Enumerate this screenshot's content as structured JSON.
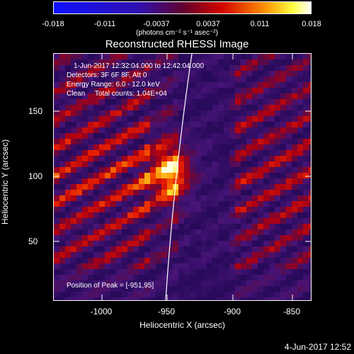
{
  "colorbar": {
    "ticks": [
      "-0.018",
      "-0.011",
      "-0.0037",
      "0.0037",
      "0.011",
      "0.018"
    ],
    "units": "(photons cm⁻² s⁻¹ asec⁻²)"
  },
  "title": "Reconstructed RHESSI Image",
  "info": {
    "time_range": "1-Jun-2017 12:32:04.000 to 12:42:04.000",
    "detectors": "Detectors: 3F 6F 8F, Att 0",
    "energy": "Energy Range: 6.0 - 12.0 keV",
    "algorithm": "Clean     Total counts: 1.04E+04",
    "peak": "Position of Peak = [-951,95]"
  },
  "axes": {
    "xlabel": "Heliocentric X (arcsec)",
    "ylabel": "Heliocentric Y (arcsec)",
    "xticks": [
      "-1000",
      "-950",
      "-900",
      "-850"
    ],
    "yticks": [
      "150",
      "100",
      "50"
    ]
  },
  "timestamp": "4-Jun-2017 12:52",
  "colors": {
    "blue_end": "#1010ff",
    "purple": "#4a1a8a",
    "red": "#d01010",
    "yellow": "#ffe040",
    "white_end": "#ffffff"
  }
}
